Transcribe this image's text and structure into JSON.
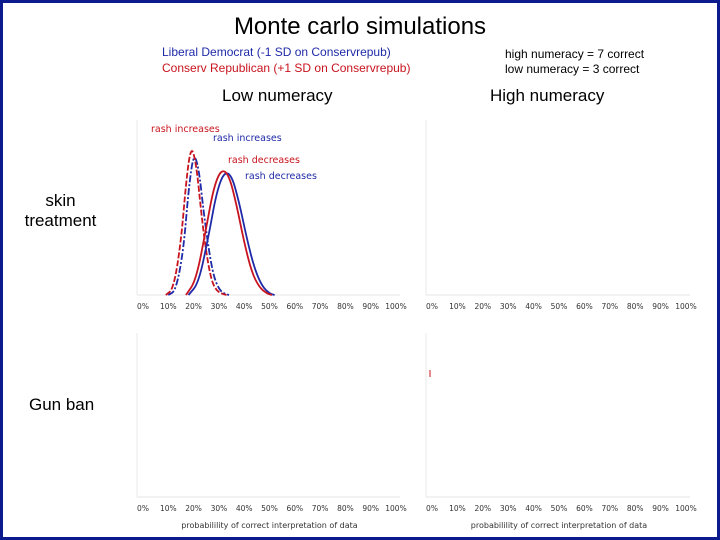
{
  "title": "Monte carlo simulations",
  "legend": {
    "liberal": "Liberal Democrat (-1 SD on Conservrepub)",
    "conservative": "Conserv Republican (+1 SD on Conservrepub)",
    "high_numeracy": "high numeracy = 7 correct",
    "low_numeracy": "low numeracy =  3 correct"
  },
  "columns": {
    "low": "Low numeracy",
    "high": "High numeracy"
  },
  "rows": {
    "skin": "skin treatment",
    "gun": "Gun ban"
  },
  "colors": {
    "background": "#0b1a8c",
    "liberal": "#1f2aa8",
    "conservative": "#c8141e"
  },
  "chart_data": [
    {
      "panel": "skin treatment / Low numeracy",
      "type": "line",
      "x_ticks": [
        "0%",
        "10%",
        "20%",
        "30%",
        "40%",
        "50%",
        "60%",
        "70%",
        "80%",
        "90%",
        "100%"
      ],
      "xlim": [
        0,
        1
      ],
      "series": [
        {
          "name": "Liberal Democrat (-1 SD on Conservrepub)",
          "color": "#1f2aa8",
          "label": "rash increases",
          "x": [
            0.1,
            0.13,
            0.16,
            0.18,
            0.2,
            0.22,
            0.24,
            0.26,
            0.28,
            0.3,
            0.32,
            0.34
          ],
          "y": [
            0,
            0.03,
            0.3,
            0.7,
            0.95,
            0.85,
            0.55,
            0.3,
            0.12,
            0.04,
            0.01,
            0
          ]
        },
        {
          "name": "Conserv Republican (+1 SD on Conservrepub)",
          "color": "#c8141e",
          "label": "rash increases",
          "x": [
            0.09,
            0.12,
            0.15,
            0.17,
            0.19,
            0.21,
            0.23,
            0.25,
            0.27,
            0.29,
            0.31,
            0.33
          ],
          "y": [
            0,
            0.04,
            0.35,
            0.75,
            1.0,
            0.88,
            0.55,
            0.28,
            0.1,
            0.03,
            0.01,
            0
          ]
        },
        {
          "name": "Liberal Democrat (-1 SD on Conservrepub)",
          "color": "#1f2aa8",
          "label": "rash decreases",
          "x": [
            0.18,
            0.22,
            0.26,
            0.29,
            0.32,
            0.35,
            0.38,
            0.41,
            0.44,
            0.47,
            0.5,
            0.52
          ],
          "y": [
            0,
            0.08,
            0.4,
            0.68,
            0.82,
            0.8,
            0.62,
            0.38,
            0.18,
            0.06,
            0.01,
            0
          ]
        },
        {
          "name": "Conserv Republican (+1 SD on Conservrepub)",
          "color": "#c8141e",
          "label": "rash decreases",
          "x": [
            0.17,
            0.21,
            0.25,
            0.28,
            0.31,
            0.34,
            0.37,
            0.4,
            0.43,
            0.46,
            0.49,
            0.51
          ],
          "y": [
            0,
            0.1,
            0.45,
            0.72,
            0.84,
            0.8,
            0.6,
            0.35,
            0.15,
            0.05,
            0.01,
            0
          ]
        }
      ]
    },
    {
      "panel": "skin treatment / High numeracy",
      "type": "line",
      "x_ticks": [
        "0%",
        "10%",
        "20%",
        "30%",
        "40%",
        "50%",
        "60%",
        "70%",
        "80%",
        "90%",
        "100%"
      ],
      "series": []
    },
    {
      "panel": "Gun ban / Low numeracy",
      "type": "line",
      "x_ticks": [
        "0%",
        "10%",
        "20%",
        "30%",
        "40%",
        "50%",
        "60%",
        "70%",
        "80%",
        "90%",
        "100%"
      ],
      "xlabel": "probabilility of correct interpretation of data",
      "series": []
    },
    {
      "panel": "Gun ban / High numeracy",
      "type": "line",
      "x_ticks": [
        "0%",
        "10%",
        "20%",
        "30%",
        "40%",
        "50%",
        "60%",
        "70%",
        "80%",
        "90%",
        "100%"
      ],
      "xlabel": "probabilility of correct interpretation of data",
      "series": []
    }
  ],
  "annotations": [
    {
      "text": "rash increases",
      "color": "#c8141e"
    },
    {
      "text": "rash increases",
      "color": "#1f2aa8"
    },
    {
      "text": "rash decreases",
      "color": "#c8141e"
    },
    {
      "text": "rash decreases",
      "color": "#1f2aa8"
    }
  ]
}
